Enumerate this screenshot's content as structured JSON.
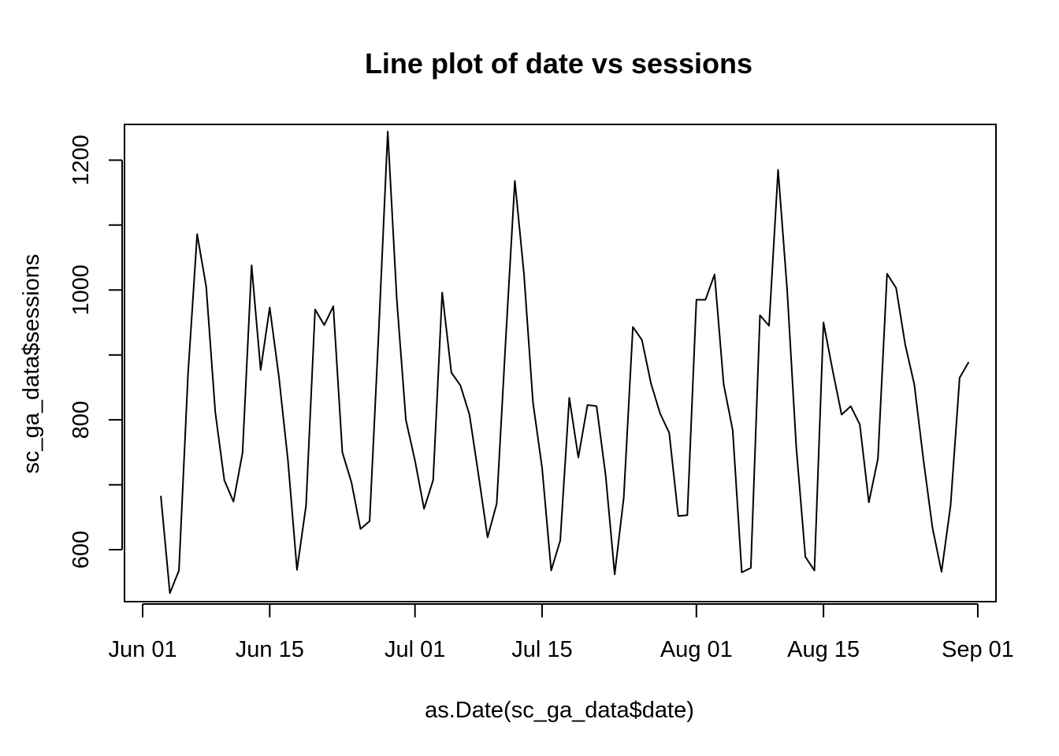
{
  "chart_data": {
    "type": "line",
    "title": "Line plot of date vs sessions",
    "xlabel": "as.Date(sc_ga_data$date)",
    "ylabel": "sc_ga_data$sessions",
    "x_ticks": [
      "2018-06-01",
      "2018-06-15",
      "2018-07-01",
      "2018-07-15",
      "2018-08-01",
      "2018-08-15",
      "2018-09-01"
    ],
    "x_tick_labels": [
      "Jun 01",
      "Jun 15",
      "Jul 01",
      "Jul 15",
      "Aug 01",
      "Aug 15",
      "Sep 01"
    ],
    "y_ticks": [
      600,
      800,
      1000,
      1200
    ],
    "y_tick_labels": [
      "600",
      "800",
      "1000",
      "1200"
    ],
    "y_minor_ticks": [
      700,
      900,
      1100
    ],
    "xlim": [
      "2018-05-30",
      "2018-09-03"
    ],
    "ylim": [
      520,
      1255
    ],
    "grid": false,
    "legend": "none",
    "line_color": "#000000",
    "series": [
      {
        "x": [
          "2018-06-03",
          "2018-06-04",
          "2018-06-05",
          "2018-06-06",
          "2018-06-07",
          "2018-06-08",
          "2018-06-09",
          "2018-06-10",
          "2018-06-11",
          "2018-06-12",
          "2018-06-13",
          "2018-06-14",
          "2018-06-15",
          "2018-06-16",
          "2018-06-17",
          "2018-06-18",
          "2018-06-19",
          "2018-06-20",
          "2018-06-21",
          "2018-06-22",
          "2018-06-23",
          "2018-06-24",
          "2018-06-25",
          "2018-06-26",
          "2018-06-27",
          "2018-06-28",
          "2018-06-29",
          "2018-06-30",
          "2018-07-01",
          "2018-07-02",
          "2018-07-03",
          "2018-07-04",
          "2018-07-05",
          "2018-07-06",
          "2018-07-07",
          "2018-07-08",
          "2018-07-09",
          "2018-07-10",
          "2018-07-11",
          "2018-07-12",
          "2018-07-13",
          "2018-07-14",
          "2018-07-15",
          "2018-07-16",
          "2018-07-17",
          "2018-07-18",
          "2018-07-19",
          "2018-07-20",
          "2018-07-21",
          "2018-07-22",
          "2018-07-23",
          "2018-07-24",
          "2018-07-25",
          "2018-07-26",
          "2018-07-27",
          "2018-07-28",
          "2018-07-29",
          "2018-07-30",
          "2018-07-31",
          "2018-08-01",
          "2018-08-02",
          "2018-08-03",
          "2018-08-04",
          "2018-08-05",
          "2018-08-06",
          "2018-08-07",
          "2018-08-08",
          "2018-08-09",
          "2018-08-10",
          "2018-08-11",
          "2018-08-12",
          "2018-08-13",
          "2018-08-14",
          "2018-08-15",
          "2018-08-16",
          "2018-08-17",
          "2018-08-18",
          "2018-08-19",
          "2018-08-20",
          "2018-08-21",
          "2018-08-22",
          "2018-08-23",
          "2018-08-24",
          "2018-08-25",
          "2018-08-26",
          "2018-08-27",
          "2018-08-28",
          "2018-08-29",
          "2018-08-30",
          "2018-08-31"
        ],
        "y": [
          683,
          533,
          568,
          870,
          1086,
          1005,
          812,
          707,
          674,
          749,
          1038,
          877,
          973,
          867,
          738,
          569,
          668,
          970,
          946,
          975,
          750,
          704,
          632,
          644,
          935,
          1244,
          985,
          800,
          737,
          663,
          707,
          996,
          873,
          853,
          808,
          715,
          619,
          671,
          925,
          1168,
          1026,
          827,
          726,
          568,
          614,
          834,
          742,
          823,
          821,
          715,
          562,
          680,
          943,
          923,
          856,
          810,
          780,
          652,
          653,
          985,
          985,
          1024,
          855,
          784,
          565,
          572,
          961,
          945,
          1185,
          1000,
          759,
          589,
          568,
          950,
          877,
          808,
          821,
          793,
          673,
          740,
          1025,
          1003,
          916,
          855,
          740,
          634,
          566,
          668,
          865,
          889
        ]
      }
    ]
  }
}
